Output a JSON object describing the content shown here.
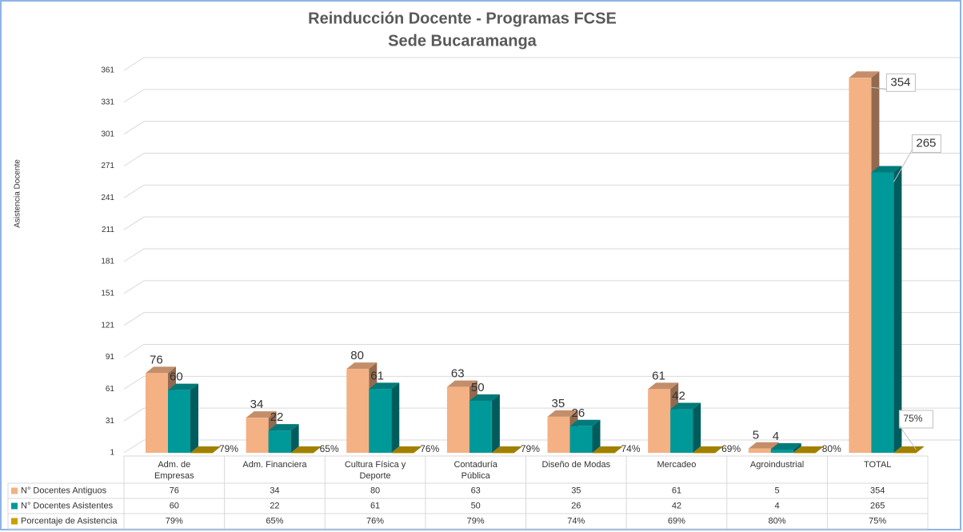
{
  "chart_data": {
    "type": "bar3d",
    "title": "Reinducción Docente - Programas FCSE",
    "subtitle": "Sede Bucaramanga",
    "y_label": "Asistencia Docente",
    "categories": [
      "Adm. de Empresas",
      "Adm. Financiera",
      "Cultura Física y Deporte",
      "Contaduría Pública",
      "Diseño de Modas",
      "Mercadeo",
      "Agroindustrial",
      "TOTAL"
    ],
    "series": [
      {
        "name": "N° Docentes Antiguos",
        "color": "#f4b183",
        "values": [
          76,
          34,
          80,
          63,
          35,
          61,
          5,
          354
        ]
      },
      {
        "name": "N° Docentes Asistentes",
        "color": "#009999",
        "values": [
          60,
          22,
          61,
          50,
          26,
          42,
          4,
          265
        ]
      },
      {
        "name": "Porcentaje de Asistencia",
        "color": "#c9a000",
        "values": [
          0.79,
          0.65,
          0.76,
          0.79,
          0.74,
          0.69,
          0.8,
          0.75
        ],
        "value_labels": [
          "79%",
          "65%",
          "76%",
          "79%",
          "74%",
          "69%",
          "80%",
          "75%"
        ]
      }
    ],
    "ylim": [
      1,
      361
    ],
    "yticks": [
      1,
      31,
      61,
      91,
      121,
      151,
      181,
      211,
      241,
      271,
      301,
      331,
      361
    ],
    "grid": true,
    "data_table": true
  }
}
